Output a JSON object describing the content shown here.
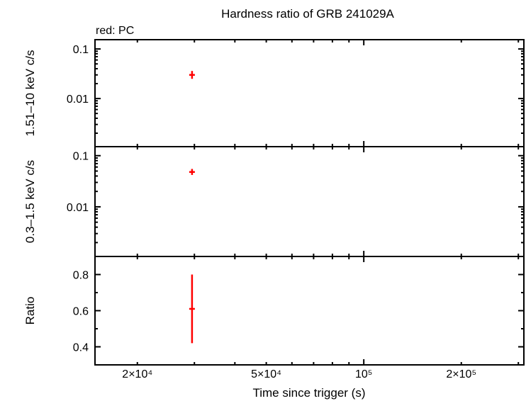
{
  "title": "Hardness ratio of GRB 241029A",
  "legend_note": "red: PC",
  "colors": {
    "series": "#ff0000",
    "axis": "#000000",
    "background": "#ffffff"
  },
  "chart_data": {
    "type": "scatter",
    "title": "Hardness ratio of GRB 241029A",
    "subtitle": "red: PC",
    "xlabel": "Time since trigger (s)",
    "xscale": "log",
    "xlim": [
      14800,
      312000
    ],
    "xticks": [
      {
        "value": 20000,
        "label": "2×10⁴"
      },
      {
        "value": 50000,
        "label": "5×10⁴"
      },
      {
        "value": 100000,
        "label": "10⁵"
      },
      {
        "value": 200000,
        "label": "2×10⁵"
      }
    ],
    "grid": false,
    "legend_position": "top-left",
    "panels": [
      {
        "id": "hard",
        "ylabel": "1.51–10 keV c/s",
        "yscale": "log",
        "ylim": [
          0.00107,
          0.154
        ],
        "yticks": [
          {
            "value": 0.1,
            "label": "0.1"
          },
          {
            "value": 0.01,
            "label": "0.01"
          }
        ],
        "series": [
          {
            "name": "PC",
            "color": "#ff0000",
            "points": [
              {
                "x": 29500,
                "y": 0.03,
                "yerr_low": 0.025,
                "yerr_high": 0.036
              }
            ]
          }
        ]
      },
      {
        "id": "soft",
        "ylabel": "0.3–1.5 keV c/s",
        "yscale": "log",
        "ylim": [
          0.00107,
          0.15
        ],
        "yticks": [
          {
            "value": 0.1,
            "label": "0.1"
          },
          {
            "value": 0.01,
            "label": "0.01"
          }
        ],
        "series": [
          {
            "name": "PC",
            "color": "#ff0000",
            "points": [
              {
                "x": 29500,
                "y": 0.048,
                "yerr_low": 0.042,
                "yerr_high": 0.055
              }
            ]
          }
        ]
      },
      {
        "id": "ratio",
        "ylabel": "Ratio",
        "yscale": "linear",
        "ylim": [
          0.3,
          0.9
        ],
        "yticks": [
          {
            "value": 0.4,
            "label": "0.4"
          },
          {
            "value": 0.6,
            "label": "0.6"
          },
          {
            "value": 0.8,
            "label": "0.8"
          }
        ],
        "yminor": [
          0.5,
          0.7
        ],
        "series": [
          {
            "name": "PC",
            "color": "#ff0000",
            "points": [
              {
                "x": 29500,
                "y": 0.61,
                "yerr_low": 0.42,
                "yerr_high": 0.8
              }
            ]
          }
        ]
      }
    ]
  }
}
